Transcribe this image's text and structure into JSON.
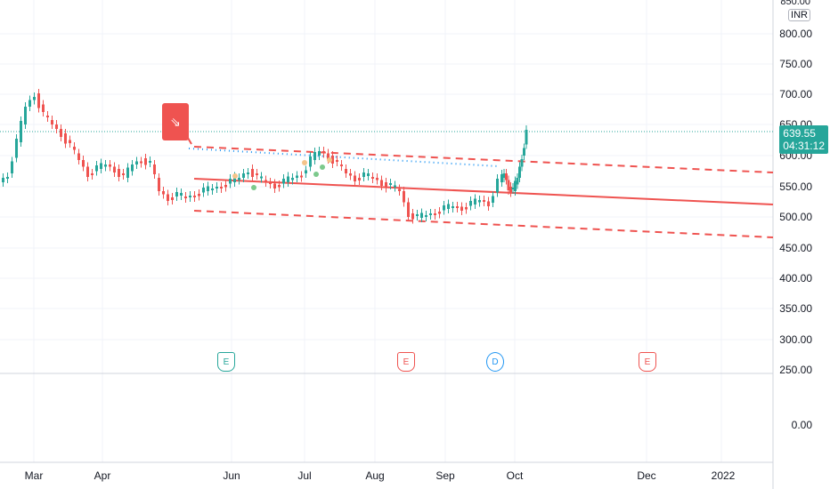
{
  "currency": "INR",
  "price_axis": {
    "top_label": "850.00",
    "labels": [
      "800.00",
      "750.00",
      "700.00",
      "650.00",
      "600.00",
      "550.00",
      "500.00",
      "450.00",
      "400.00",
      "350.00",
      "300.00",
      "250.00"
    ],
    "indicator_label": "0.00"
  },
  "price_tag": {
    "price": "639.55",
    "countdown": "04:31:12",
    "color": "#26a69a"
  },
  "time_axis": [
    "Mar",
    "Apr",
    "Jun",
    "Jul",
    "Aug",
    "Sep",
    "Oct",
    "Dec",
    "2022"
  ],
  "events": [
    {
      "kind": "E",
      "color": "#26a69a"
    },
    {
      "kind": "E",
      "color": "#ef5350"
    },
    {
      "kind": "D",
      "color": "#2196f3"
    },
    {
      "kind": "E",
      "color": "#ef5350"
    }
  ],
  "note_icon": "arrow-down-right-icon",
  "colors": {
    "up": "#26a69a",
    "down": "#ef5350",
    "trend": "#ef5350",
    "dotted": "#2196f3"
  }
}
